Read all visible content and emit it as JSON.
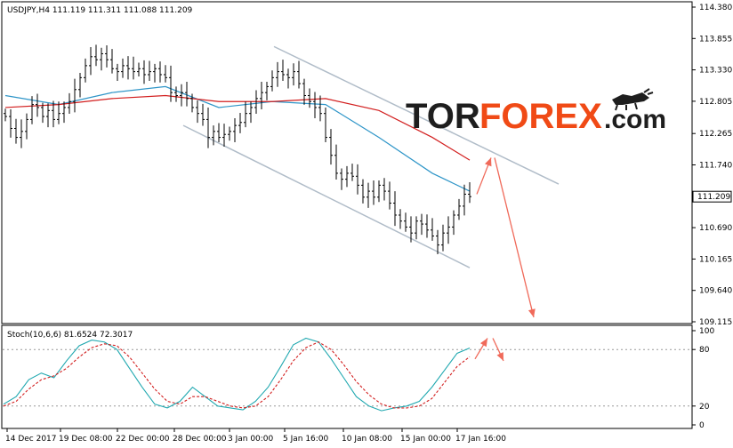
{
  "window": {
    "symbol_header": "USDJPY,H4  111.119 111.311 111.088 111.209"
  },
  "logo": {
    "part1": "TOR",
    "part2": "FOREX",
    "part3": ".com"
  },
  "colors": {
    "candle": "#000000",
    "ma_fast": "#2e95c8",
    "ma_slow": "#d21e1e",
    "channel": "#b0bcc8",
    "arrow": "#f06a5a",
    "stoch_main": "#20a8b0",
    "stoch_signal": "#d21e1e",
    "price_tag_bg": "#ffffff"
  },
  "chart_data": [
    {
      "type": "candlestick",
      "title": "USDJPY,H4",
      "ohlc_header": {
        "open": 111.119,
        "high": 111.311,
        "low": 111.088,
        "close": 111.209
      },
      "current_price": "111.209",
      "ylim": [
        109.115,
        114.38
      ],
      "y_ticks": [
        "114.380",
        "113.855",
        "113.330",
        "112.805",
        "112.265",
        "111.740",
        "110.690",
        "110.165",
        "109.640",
        "109.115"
      ],
      "x_ticks": [
        "14 Dec 2017",
        "19 Dec 08:00",
        "22 Dec 00:00",
        "28 Dec 00:00",
        "3 Jan 00:00",
        "5 Jan 16:00",
        "10 Jan 08:00",
        "15 Jan 00:00",
        "17 Jan 16:00"
      ],
      "closes": [
        112.55,
        112.35,
        112.2,
        112.3,
        112.5,
        112.75,
        112.7,
        112.55,
        112.65,
        112.5,
        112.6,
        112.7,
        112.8,
        113.0,
        113.2,
        113.4,
        113.55,
        113.5,
        113.6,
        113.5,
        113.35,
        113.3,
        113.4,
        113.35,
        113.3,
        113.35,
        113.25,
        113.3,
        113.35,
        113.25,
        113.2,
        112.95,
        112.9,
        112.95,
        112.85,
        112.7,
        112.6,
        112.5,
        112.2,
        112.3,
        112.2,
        112.25,
        112.3,
        112.4,
        112.45,
        112.6,
        112.7,
        112.85,
        112.95,
        113.05,
        113.2,
        113.3,
        113.25,
        113.2,
        113.3,
        113.1,
        112.9,
        112.8,
        112.7,
        112.6,
        112.2,
        111.9,
        111.6,
        111.5,
        111.6,
        111.55,
        111.4,
        111.2,
        111.3,
        111.2,
        111.4,
        111.3,
        111.1,
        110.9,
        110.8,
        110.7,
        110.6,
        110.8,
        110.75,
        110.65,
        110.55,
        110.4,
        110.6,
        110.7,
        110.9,
        111.05,
        111.25,
        111.209
      ],
      "series": [
        {
          "name": "",
          "type": "ma",
          "x_index": [
            0,
            10,
            20,
            30,
            40,
            50,
            60,
            70,
            80,
            87
          ],
          "values": [
            112.9,
            112.75,
            112.95,
            113.05,
            112.7,
            112.8,
            112.75,
            112.2,
            111.6,
            111.3
          ]
        },
        {
          "name": "",
          "type": "ma",
          "x_index": [
            0,
            10,
            20,
            30,
            40,
            50,
            60,
            70,
            80,
            87
          ],
          "values": [
            112.7,
            112.75,
            112.85,
            112.9,
            112.8,
            112.8,
            112.85,
            112.65,
            112.2,
            111.82
          ]
        }
      ],
      "channel": {
        "upper": [
          {
            "date": "5 Jan 00:00",
            "price": 113.72
          },
          {
            "date": "18 Jan 04:00",
            "price": 111.42
          }
        ],
        "lower": [
          {
            "date": "26 Dec 20:00",
            "price": 112.4
          },
          {
            "date": "17 Jan 08:00",
            "price": 110.02
          }
        ]
      },
      "forecast_arrows": [
        {
          "from": 111.25,
          "to": 111.86
        },
        {
          "from": 111.86,
          "to": 109.19
        }
      ]
    },
    {
      "type": "line",
      "title": "Stoch(10,6,6) 81.6524 72.3017",
      "ylim": [
        0,
        100
      ],
      "y_ticks": [
        "100",
        "80",
        "20",
        "0"
      ],
      "series": [
        {
          "name": "",
          "values": [
            22,
            30,
            48,
            55,
            50,
            68,
            84,
            90,
            88,
            80,
            60,
            40,
            22,
            18,
            25,
            40,
            30,
            20,
            18,
            16,
            25,
            40,
            62,
            85,
            92,
            88,
            70,
            50,
            30,
            20,
            15,
            18,
            20,
            25,
            40,
            58,
            76,
            81.6524
          ]
        },
        {
          "name": "",
          "values": [
            20,
            25,
            38,
            48,
            52,
            60,
            72,
            82,
            86,
            84,
            72,
            55,
            38,
            25,
            22,
            30,
            30,
            25,
            20,
            18,
            20,
            30,
            48,
            68,
            82,
            88,
            80,
            64,
            46,
            32,
            22,
            18,
            18,
            20,
            28,
            45,
            62,
            72.3017
          ]
        }
      ],
      "forecast_arrows": [
        {
          "from": 70,
          "to": 92
        },
        {
          "from": 92,
          "to": 68
        }
      ]
    }
  ]
}
